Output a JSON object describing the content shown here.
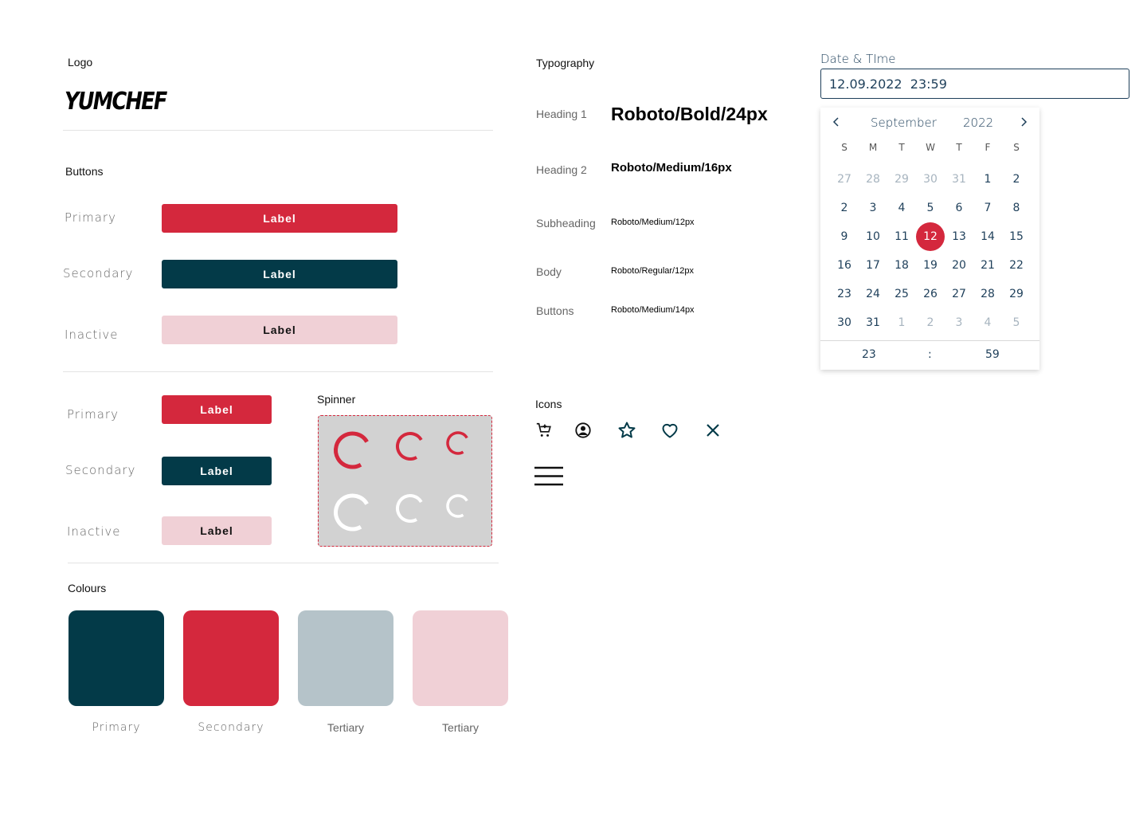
{
  "logo": {
    "title": "Logo",
    "text": "YUMCHEF"
  },
  "buttons": {
    "title": "Buttons",
    "rows": [
      {
        "row_label": "Primary",
        "label": "Label"
      },
      {
        "row_label": "Secondary",
        "label": "Label"
      },
      {
        "row_label": "Inactive",
        "label": "Label"
      }
    ],
    "small_rows": [
      {
        "row_label": "Primary",
        "label": "Label"
      },
      {
        "row_label": "Secondary",
        "label": "Label"
      },
      {
        "row_label": "Inactive",
        "label": "Label"
      }
    ]
  },
  "spinner": {
    "title": "Spinner"
  },
  "colours": {
    "title": "Colours",
    "swatches": [
      {
        "name": "Primary",
        "color": "#033a48"
      },
      {
        "name": "Secondary",
        "color": "#d4283d"
      },
      {
        "name": "Tertiary",
        "color": "#b5c3c9"
      },
      {
        "name": "Tertiary",
        "color": "#f0d0d6"
      }
    ]
  },
  "typography": {
    "title": "Typography",
    "rows": [
      {
        "label": "Heading 1",
        "sample": "Roboto/Bold/24px"
      },
      {
        "label": "Heading 2",
        "sample": "Roboto/Medium/16px"
      },
      {
        "label": "Subheading",
        "sample": "Roboto/Medium/12px"
      },
      {
        "label": "Body",
        "sample": "Roboto/Regular/12px"
      },
      {
        "label": "Buttons",
        "sample": "Roboto/Medium/14px"
      }
    ]
  },
  "icons": {
    "title": "Icons",
    "items": [
      "cart-add-icon",
      "user-circle-icon",
      "star-icon",
      "heart-icon",
      "close-icon",
      "menu-icon"
    ]
  },
  "datetime": {
    "label": "Date & TIme",
    "value": "12.09.2022  23:59",
    "month": "September",
    "year": "2022",
    "weekdays": [
      "S",
      "M",
      "T",
      "W",
      "T",
      "F",
      "S"
    ],
    "weeks": [
      [
        "27",
        "28",
        "29",
        "30",
        "31",
        "1",
        "2"
      ],
      [
        "2",
        "3",
        "4",
        "5",
        "6",
        "7",
        "8"
      ],
      [
        "9",
        "10",
        "11",
        "12",
        "13",
        "14",
        "15"
      ],
      [
        "16",
        "17",
        "18",
        "19",
        "20",
        "21",
        "22"
      ],
      [
        "23",
        "24",
        "25",
        "26",
        "27",
        "28",
        "29"
      ],
      [
        "30",
        "31",
        "1",
        "2",
        "3",
        "4",
        "5"
      ]
    ],
    "selected_day": "12",
    "hour": "23",
    "separator": ":",
    "minute": "59"
  },
  "colors": {
    "primary": "#033a48",
    "secondary": "#d4283d",
    "tertiary": "#b5c3c9",
    "inactive": "#f0d0d6"
  }
}
